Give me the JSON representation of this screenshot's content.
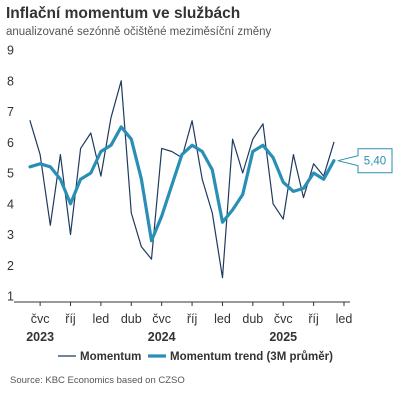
{
  "chart_data": {
    "type": "line",
    "title": "Inflační momentum ve službách",
    "subtitle": "anualizované sezónně očištěné meziměsíční změny",
    "source": "Source: KBC Economics based on CZSO",
    "ylim": [
      1,
      9
    ],
    "yticks": [
      "1",
      "2",
      "3",
      "4",
      "5",
      "6",
      "7",
      "8",
      "9"
    ],
    "x_ticks": [
      {
        "month_index": 0,
        "label": "čvc"
      },
      {
        "month_index": 3,
        "label": "říj"
      },
      {
        "month_index": 6,
        "label": "led"
      },
      {
        "month_index": 9,
        "label": "dub"
      },
      {
        "month_index": 12,
        "label": "čvc"
      },
      {
        "month_index": 15,
        "label": "říj"
      },
      {
        "month_index": 18,
        "label": "led"
      },
      {
        "month_index": 21,
        "label": "dub"
      },
      {
        "month_index": 24,
        "label": "čvc"
      },
      {
        "month_index": 27,
        "label": "říj"
      },
      {
        "month_index": 30,
        "label": "led"
      }
    ],
    "year_labels": [
      {
        "month_index": 0,
        "label": "2023"
      },
      {
        "month_index": 12,
        "label": "2024"
      },
      {
        "month_index": 24,
        "label": "2025"
      }
    ],
    "x_range": [
      -1,
      30
    ],
    "grid": false,
    "legend_position": "bottom",
    "series": [
      {
        "name": "Momentum",
        "color": "#1f3a5f",
        "x": [
          -1,
          0,
          1,
          2,
          3,
          4,
          5,
          6,
          7,
          8,
          9,
          10,
          11,
          12,
          13,
          14,
          15,
          16,
          17,
          18,
          19,
          20,
          21,
          22,
          23,
          24,
          25,
          26,
          27,
          28,
          29
        ],
        "values": [
          6.7,
          5.6,
          3.3,
          5.6,
          3.0,
          5.8,
          6.3,
          4.9,
          6.8,
          8.0,
          3.7,
          2.6,
          2.2,
          5.8,
          5.7,
          5.5,
          6.7,
          4.8,
          3.7,
          1.6,
          6.1,
          5.0,
          6.1,
          6.6,
          4.0,
          3.5,
          5.6,
          4.2,
          5.3,
          4.9,
          6.0
        ]
      },
      {
        "name": "Momentum trend (3M průměr)",
        "color": "#2a8fb5",
        "x": [
          -1,
          0,
          1,
          2,
          3,
          4,
          5,
          6,
          7,
          8,
          9,
          10,
          11,
          12,
          13,
          14,
          15,
          16,
          17,
          18,
          19,
          20,
          21,
          22,
          23,
          24,
          25,
          26,
          27,
          28,
          29
        ],
        "values": [
          5.2,
          5.3,
          5.2,
          4.8,
          4.0,
          4.8,
          5.0,
          5.7,
          5.9,
          6.5,
          6.1,
          4.8,
          2.8,
          3.6,
          4.6,
          5.6,
          5.9,
          5.7,
          5.1,
          3.4,
          3.8,
          4.3,
          5.7,
          5.9,
          5.5,
          4.7,
          4.4,
          4.5,
          5.0,
          4.8,
          5.4
        ]
      }
    ],
    "annotation": {
      "series": "Momentum trend (3M průměr)",
      "label": "5,40"
    }
  }
}
